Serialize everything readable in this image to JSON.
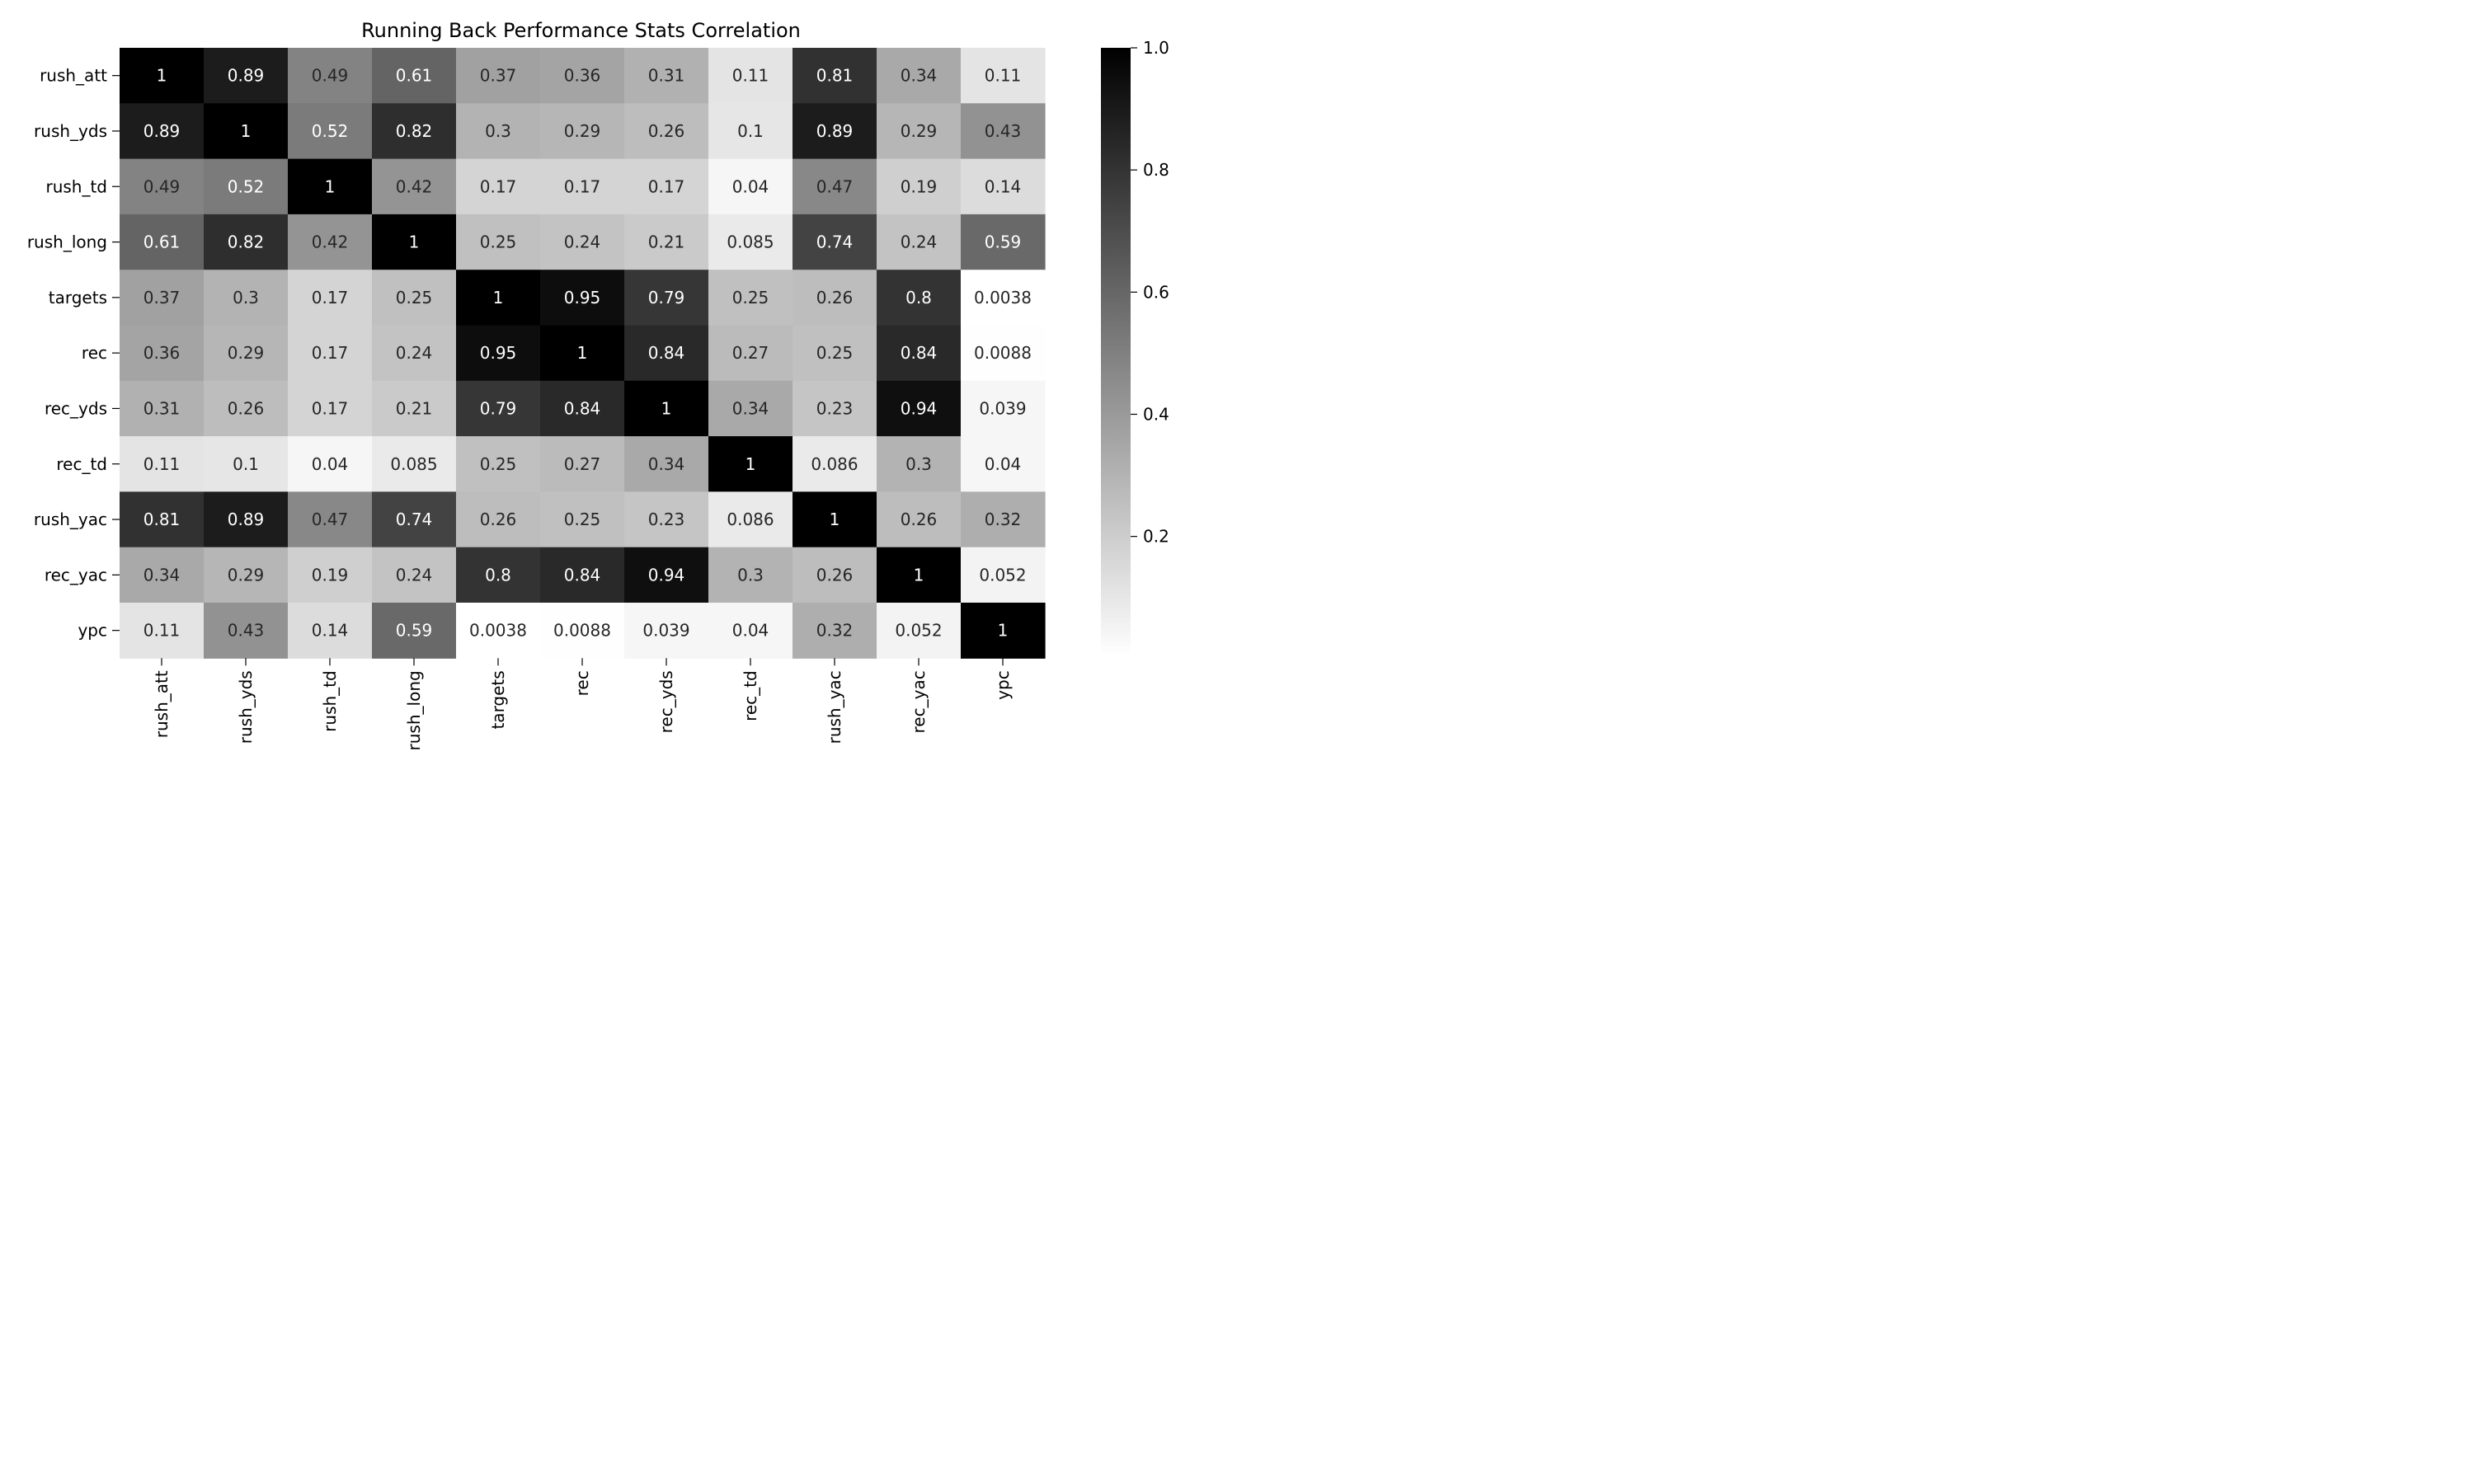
{
  "chart_data": {
    "type": "heatmap",
    "title": "Running Back Performance Stats Correlation",
    "xlabel": "",
    "ylabel": "",
    "labels": [
      "rush_att",
      "rush_yds",
      "rush_td",
      "rush_long",
      "targets",
      "rec",
      "rec_yds",
      "rec_td",
      "rush_yac",
      "rec_yac",
      "ypc"
    ],
    "matrix": [
      [
        "1",
        "0.89",
        "0.49",
        "0.61",
        "0.37",
        "0.36",
        "0.31",
        "0.11",
        "0.81",
        "0.34",
        "0.11"
      ],
      [
        "0.89",
        "1",
        "0.52",
        "0.82",
        "0.3",
        "0.29",
        "0.26",
        "0.1",
        "0.89",
        "0.29",
        "0.43"
      ],
      [
        "0.49",
        "0.52",
        "1",
        "0.42",
        "0.17",
        "0.17",
        "0.17",
        "0.04",
        "0.47",
        "0.19",
        "0.14"
      ],
      [
        "0.61",
        "0.82",
        "0.42",
        "1",
        "0.25",
        "0.24",
        "0.21",
        "0.085",
        "0.74",
        "0.24",
        "0.59"
      ],
      [
        "0.37",
        "0.3",
        "0.17",
        "0.25",
        "1",
        "0.95",
        "0.79",
        "0.25",
        "0.26",
        "0.8",
        "0.0038"
      ],
      [
        "0.36",
        "0.29",
        "0.17",
        "0.24",
        "0.95",
        "1",
        "0.84",
        "0.27",
        "0.25",
        "0.84",
        "0.0088"
      ],
      [
        "0.31",
        "0.26",
        "0.17",
        "0.21",
        "0.79",
        "0.84",
        "1",
        "0.34",
        "0.23",
        "0.94",
        "0.039"
      ],
      [
        "0.11",
        "0.1",
        "0.04",
        "0.085",
        "0.25",
        "0.27",
        "0.34",
        "1",
        "0.086",
        "0.3",
        "0.04"
      ],
      [
        "0.81",
        "0.89",
        "0.47",
        "0.74",
        "0.26",
        "0.25",
        "0.23",
        "0.086",
        "1",
        "0.26",
        "0.32"
      ],
      [
        "0.34",
        "0.29",
        "0.19",
        "0.24",
        "0.8",
        "0.84",
        "0.94",
        "0.3",
        "0.26",
        "1",
        "0.052"
      ],
      [
        "0.11",
        "0.43",
        "0.14",
        "0.59",
        "0.0038",
        "0.0088",
        "0.039",
        "0.04",
        "0.32",
        "0.052",
        "1"
      ]
    ],
    "colorscale": {
      "name": "Greys",
      "min": 0.0038,
      "max": 1.0,
      "low_color": "#ffffff",
      "high_color": "#000000",
      "ticks": [
        "0.2",
        "0.4",
        "0.6",
        "0.8",
        "1.0"
      ]
    },
    "annotations": true,
    "grid": false,
    "colorbar_position": "right"
  }
}
